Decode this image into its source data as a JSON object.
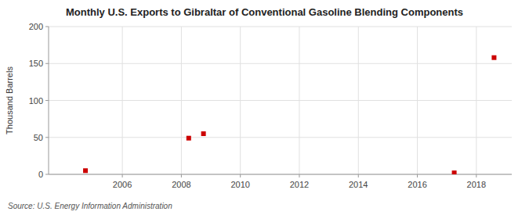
{
  "chart_data": {
    "type": "scatter",
    "title": "Monthly U.S. Exports to Gibraltar of Conventional Gasoline Blending Components",
    "ylabel": "Thousand Barrels",
    "source": "Source: U.S. Energy Information Administration",
    "x": [
      2004.75,
      2008.25,
      2008.75,
      2017.25,
      2018.6
    ],
    "values": [
      5,
      49,
      55,
      2,
      158
    ],
    "color": "#cc0000",
    "marker": "square",
    "xlim": [
      2003.5,
      2019.2
    ],
    "ylim": [
      0,
      200
    ],
    "xticks": [
      2006,
      2008,
      2010,
      2012,
      2014,
      2016,
      2018
    ],
    "yticks": [
      0,
      50,
      100,
      150,
      200
    ],
    "grid": true
  }
}
